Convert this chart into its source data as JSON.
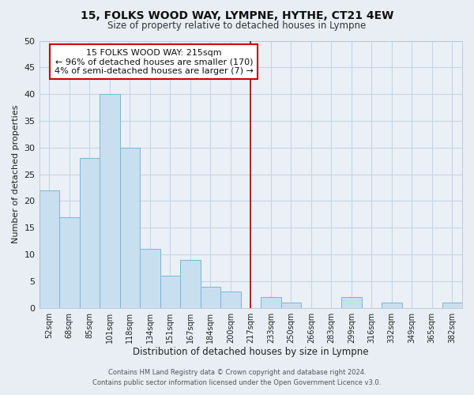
{
  "title": "15, FOLKS WOOD WAY, LYMPNE, HYTHE, CT21 4EW",
  "subtitle": "Size of property relative to detached houses in Lympne",
  "xlabel": "Distribution of detached houses by size in Lympne",
  "ylabel": "Number of detached properties",
  "bin_labels": [
    "52sqm",
    "68sqm",
    "85sqm",
    "101sqm",
    "118sqm",
    "134sqm",
    "151sqm",
    "167sqm",
    "184sqm",
    "200sqm",
    "217sqm",
    "233sqm",
    "250sqm",
    "266sqm",
    "283sqm",
    "299sqm",
    "316sqm",
    "332sqm",
    "349sqm",
    "365sqm",
    "382sqm"
  ],
  "bin_values": [
    22,
    17,
    28,
    40,
    30,
    11,
    6,
    9,
    4,
    3,
    0,
    2,
    1,
    0,
    0,
    2,
    0,
    1,
    0,
    0,
    1
  ],
  "bar_color": "#c8dff0",
  "bar_edge_color": "#7ab5d8",
  "vline_x_index": 10,
  "vline_color": "#aa0000",
  "annotation_text": "15 FOLKS WOOD WAY: 215sqm\n← 96% of detached houses are smaller (170)\n4% of semi-detached houses are larger (7) →",
  "annotation_box_color": "#ffffff",
  "annotation_box_edge": "#cc0000",
  "ylim": [
    0,
    50
  ],
  "yticks": [
    0,
    5,
    10,
    15,
    20,
    25,
    30,
    35,
    40,
    45,
    50
  ],
  "footer_line1": "Contains HM Land Registry data © Crown copyright and database right 2024.",
  "footer_line2": "Contains public sector information licensed under the Open Government Licence v3.0.",
  "bg_color": "#e8eef4",
  "plot_bg_color": "#eaf0f6",
  "grid_color": "#c5d5e5"
}
